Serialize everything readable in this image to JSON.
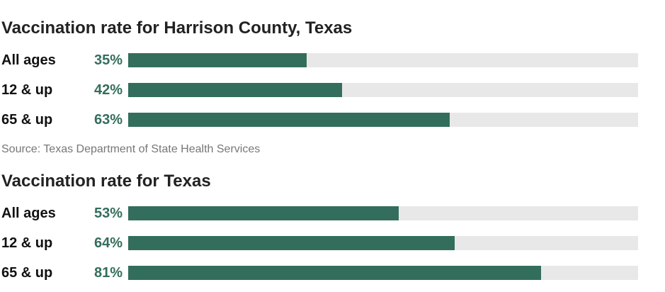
{
  "colors": {
    "bar": "#336e5c",
    "track": "#e8e8e8",
    "value_text": "#336e5c"
  },
  "chart_data": [
    {
      "type": "bar",
      "orientation": "horizontal",
      "title": "Vaccination rate for Harrison County, Texas",
      "categories": [
        "All ages",
        "12 & up",
        "65 & up"
      ],
      "values": [
        35,
        42,
        63
      ],
      "value_labels": [
        "35%",
        "42%",
        "63%"
      ],
      "xlim": [
        0,
        100
      ],
      "grid": false,
      "legend": "none",
      "source": "Source: Texas Department of State Health Services"
    },
    {
      "type": "bar",
      "orientation": "horizontal",
      "title": "Vaccination rate for Texas",
      "categories": [
        "All ages",
        "12 & up",
        "65 & up"
      ],
      "values": [
        53,
        64,
        81
      ],
      "value_labels": [
        "53%",
        "64%",
        "81%"
      ],
      "xlim": [
        0,
        100
      ],
      "grid": false,
      "legend": "none"
    }
  ]
}
